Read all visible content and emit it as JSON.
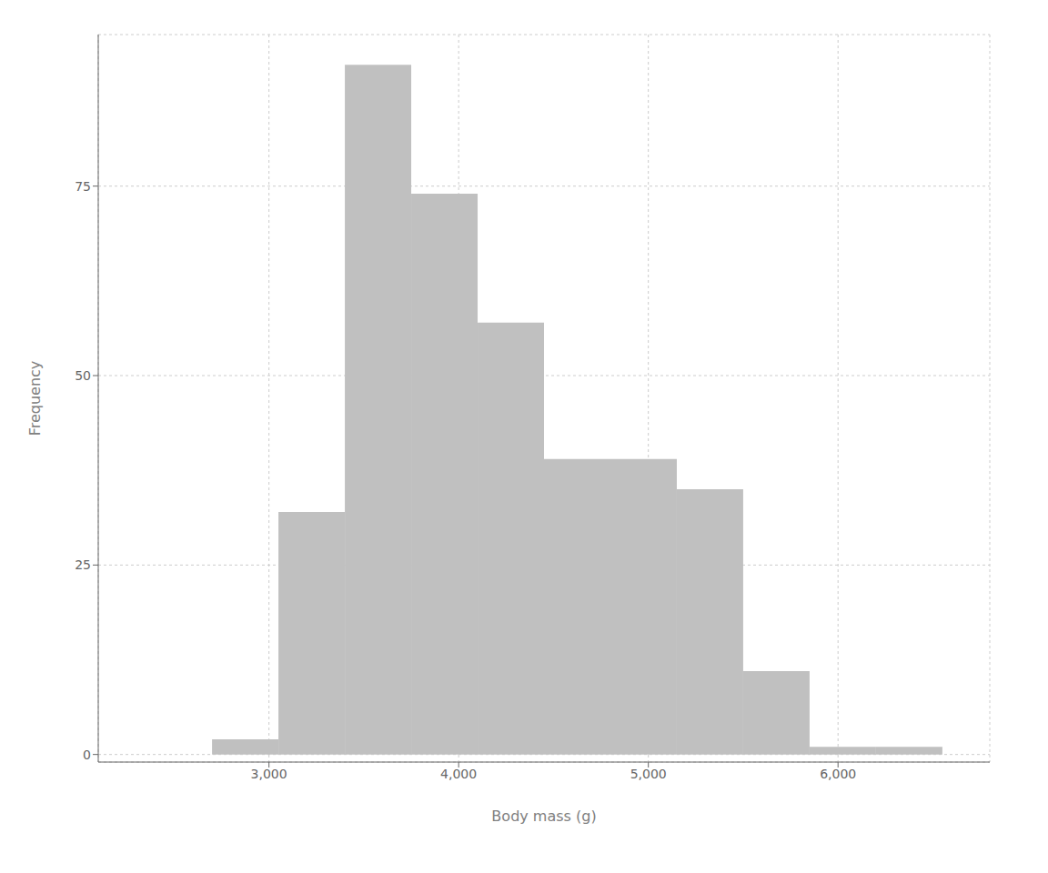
{
  "chart_data": {
    "type": "histogram",
    "xlabel": "Body mass (g)",
    "ylabel": "Frequency",
    "bins": [
      2700,
      3050,
      3400,
      3750,
      4100,
      4450,
      4800,
      5150,
      5500,
      5850,
      6200,
      6550
    ],
    "values": [
      2,
      32,
      91,
      74,
      57,
      39,
      39,
      35,
      11,
      1,
      1
    ],
    "color": "#c0c0c0",
    "xlim": [
      2100,
      6800
    ],
    "ylim": [
      -1,
      95
    ],
    "xticks": [
      {
        "value": 3000,
        "label": "3,000"
      },
      {
        "value": 4000,
        "label": "4,000"
      },
      {
        "value": 5000,
        "label": "5,000"
      },
      {
        "value": 6000,
        "label": "6,000"
      }
    ],
    "yticks": [
      0,
      25,
      50,
      75
    ],
    "grid": true
  }
}
